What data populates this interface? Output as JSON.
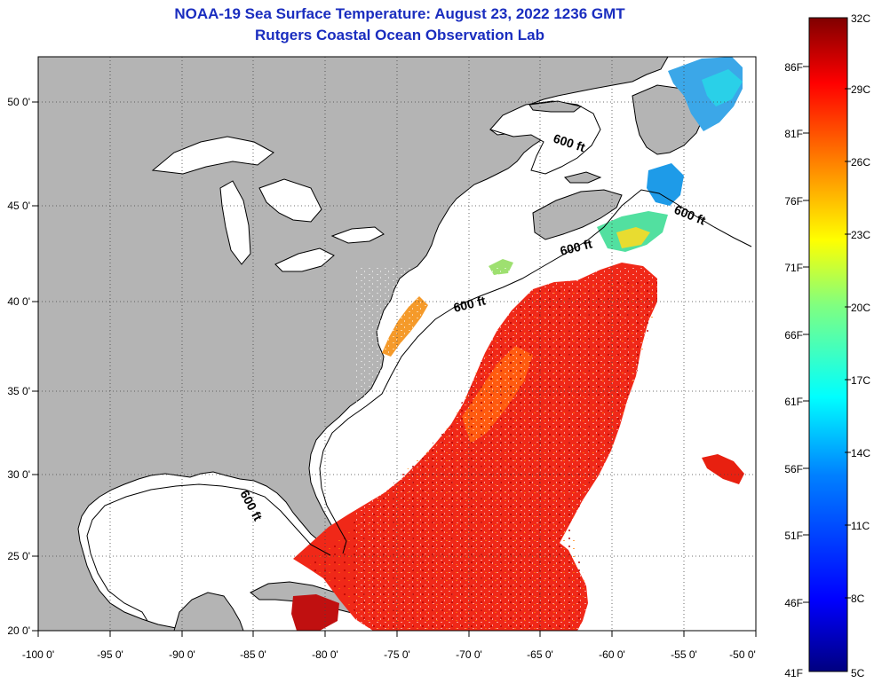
{
  "title": {
    "line1": "NOAA-19 Sea Surface Temperature:  August 23, 2022 1236 GMT",
    "line2": "Rutgers Coastal Ocean Observation Lab"
  },
  "map": {
    "lon_range": [
      -100,
      -50
    ],
    "lat_range": [
      20,
      52
    ],
    "lon_ticks": [
      "-100 0'",
      "-95 0'",
      "-90 0'",
      "-85 0'",
      "-80 0'",
      "-75 0'",
      "-70 0'",
      "-65 0'",
      "-60 0'",
      "-55 0'",
      "-50 0'"
    ],
    "lat_ticks": [
      "20 0'",
      "25 0'",
      "30 0'",
      "35 0'",
      "40 0'",
      "45 0'",
      "50 0'"
    ],
    "contour_labels": [
      "600 ft",
      "600 ft",
      "600 ft",
      "600 ft",
      "600 ft"
    ],
    "grid": true,
    "colors": {
      "land": "#b4b4b4",
      "no_data": "#ffffff",
      "coast": "#000000"
    }
  },
  "colorbar": {
    "celsius_labels": [
      "32C",
      "29C",
      "26C",
      "23C",
      "20C",
      "17C",
      "14C",
      "11C",
      "8C",
      "5C"
    ],
    "fahrenheit_labels": [
      "86F",
      "81F",
      "76F",
      "71F",
      "66F",
      "61F",
      "56F",
      "51F",
      "46F",
      "41F"
    ],
    "range_c": [
      5,
      32
    ],
    "colors": [
      "#000080",
      "#0000ff",
      "#0080ff",
      "#00ffff",
      "#80ff80",
      "#ffff00",
      "#ff8000",
      "#ff0000",
      "#800000"
    ]
  }
}
